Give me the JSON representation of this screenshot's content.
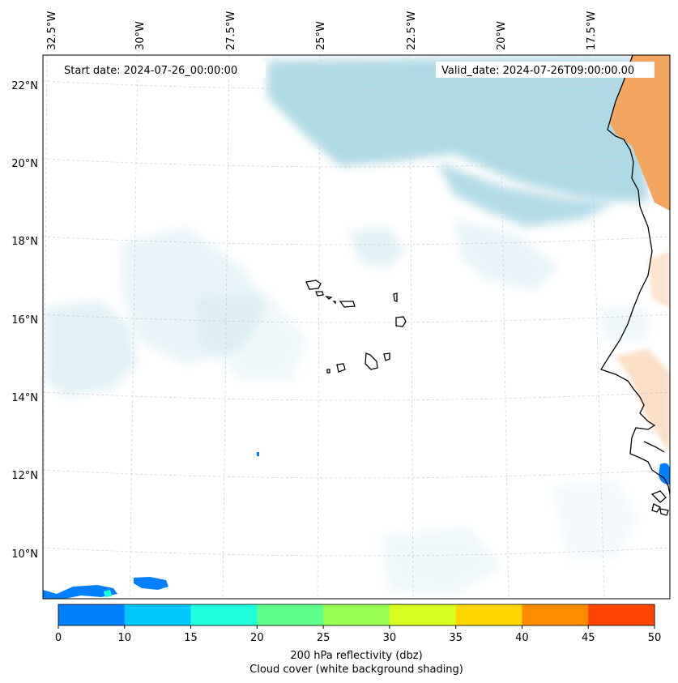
{
  "header": {
    "start_date": "Start date: 2024-07-26_00:00:00",
    "valid_date": "Valid_date: 2024-07-26T09:00:00.00"
  },
  "map": {
    "lon_labels": [
      "32.5°W",
      "30°W",
      "27.5°W",
      "25°W",
      "22.5°W",
      "20°W",
      "17.5°W"
    ],
    "lat_labels": [
      "22°N",
      "20°N",
      "18°N",
      "16°N",
      "14°N",
      "12°N",
      "10°N"
    ],
    "colors": {
      "cloud": "#acd7e5",
      "land_shading": "#f4a55f",
      "coastline": "#000000",
      "gridline": "#cccccc"
    }
  },
  "colorbar": {
    "ticks": [
      "0",
      "10",
      "15",
      "20",
      "25",
      "30",
      "35",
      "40",
      "45",
      "50"
    ],
    "colors": [
      "#0080ff",
      "#00c8ff",
      "#1effdb",
      "#5cff8a",
      "#99ff55",
      "#d7ff1e",
      "#ffd700",
      "#ff8c00",
      "#ff4500"
    ],
    "label_line1": "200 hPa reflectivity (dbz)",
    "label_line2": "Cloud cover (white background shading)"
  }
}
